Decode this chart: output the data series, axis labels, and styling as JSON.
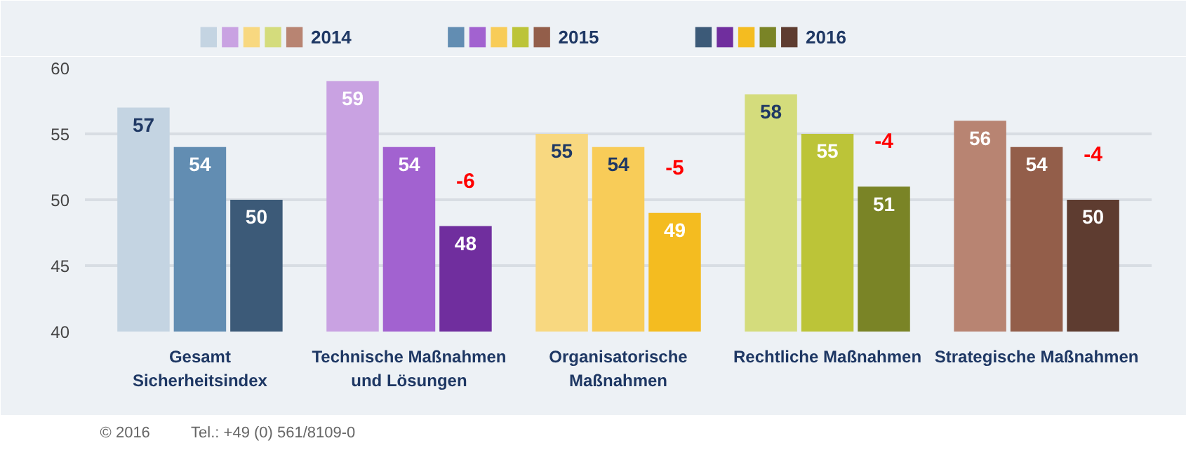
{
  "chart_data": {
    "type": "bar",
    "categories": [
      "Gesamt\nSicherheitsindex",
      "Technische Maßnahmen\nund Lösungen",
      "Organisatorische\nMaßnahmen",
      "Rechtliche Maßnahmen",
      "Strategische Maßnahmen"
    ],
    "series": [
      {
        "name": "2014",
        "colors": [
          "#c4d4e2",
          "#c9a2e2",
          "#f8d880",
          "#d4dc7c",
          "#b88472"
        ],
        "values": [
          57,
          59,
          55,
          58,
          56
        ]
      },
      {
        "name": "2015",
        "colors": [
          "#628db2",
          "#a262d0",
          "#f8cc58",
          "#bcc438",
          "#935e4a"
        ],
        "values": [
          54,
          54,
          54,
          55,
          54
        ]
      },
      {
        "name": "2016",
        "colors": [
          "#3c5a78",
          "#702e9e",
          "#f4bc20",
          "#7a8426",
          "#5e3c30"
        ],
        "values": [
          50,
          48,
          49,
          51,
          50
        ]
      }
    ],
    "ylim": [
      40,
      60
    ],
    "yticks": [
      40,
      45,
      50,
      55,
      60
    ],
    "grid": "y",
    "legend": "top",
    "data_labels": true,
    "annotations": [
      "-6",
      "-5",
      "-4",
      "-4",
      "© 2016",
      "Tel.: +49 (0) 561/8109-0"
    ]
  }
}
